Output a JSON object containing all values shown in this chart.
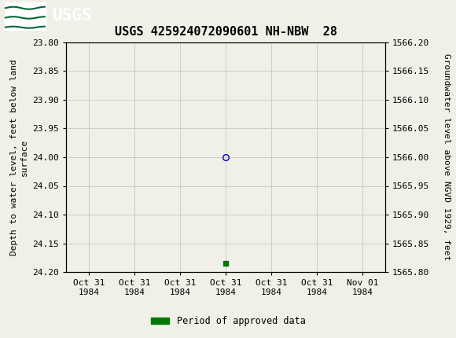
{
  "title": "USGS 425924072090601 NH-NBW  28",
  "header_color": "#006633",
  "background_color": "#f0f0e8",
  "plot_bg_color": "#f0f0e8",
  "ylim_bottom": 24.2,
  "ylim_top": 23.8,
  "ylim_right_top": 1566.2,
  "ylim_right_bottom": 1565.8,
  "ylabel_left": "Depth to water level, feet below land\nsurface",
  "ylabel_right": "Groundwater level above NGVD 1929, feet",
  "yticks_left": [
    23.8,
    23.85,
    23.9,
    23.95,
    24.0,
    24.05,
    24.1,
    24.15,
    24.2
  ],
  "yticks_right": [
    1566.2,
    1566.15,
    1566.1,
    1566.05,
    1566.0,
    1565.95,
    1565.9,
    1565.85,
    1565.8
  ],
  "point_x": 3,
  "point_y": 24.0,
  "green_square_x": 3,
  "green_square_y": 24.185,
  "point_color": "#0000bb",
  "approved_color": "#007700",
  "legend_label": "Period of approved data",
  "grid_color": "#cccccc",
  "tick_font_size": 8,
  "title_font_size": 11,
  "ylabel_font_size": 8,
  "xtick_labels": [
    "Oct 31\n1984",
    "Oct 31\n1984",
    "Oct 31\n1984",
    "Oct 31\n1984",
    "Oct 31\n1984",
    "Oct 31\n1984",
    "Nov 01\n1984"
  ],
  "xtick_positions": [
    0,
    1,
    2,
    3,
    4,
    5,
    6
  ],
  "xlim": [
    -0.5,
    6.5
  ]
}
